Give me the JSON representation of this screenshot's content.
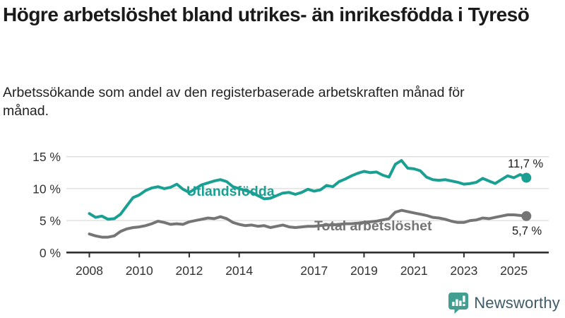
{
  "header": {
    "title": "Högre arbetslöshet bland utrikes- än inrikesfödda i Tyresö",
    "subtitle": "Arbetssökande som andel av den registerbaserade arbetskraften månad för månad."
  },
  "branding": {
    "logo_text": "Newsworthy",
    "logo_icon": "bar-chart-speech-bubble-icon",
    "logo_icon_color": "#419e90",
    "logo_text_color": "#3f5b69"
  },
  "colors": {
    "series_foreign_born": "#1aa092",
    "series_total": "#757575",
    "grid": "#dcdcdc",
    "axis": "#2e2e2e",
    "tick_text": "#333333",
    "value_label_text": "#1a1a1a"
  },
  "chart_data": {
    "type": "line",
    "title": "Högre arbetslöshet bland utrikes- än inrikesfödda i Tyresö",
    "xlabel": "",
    "ylabel": "",
    "grid": "horizontal",
    "x_axis": {
      "ticks": [
        {
          "value": 2008,
          "label": "2008"
        },
        {
          "value": 2010,
          "label": "2010"
        },
        {
          "value": 2012,
          "label": "2012"
        },
        {
          "value": 2014,
          "label": "2014"
        },
        {
          "value": 2017,
          "label": "2017"
        },
        {
          "value": 2019,
          "label": "2019"
        },
        {
          "value": 2021,
          "label": "2021"
        },
        {
          "value": 2023,
          "label": "2023"
        },
        {
          "value": 2025,
          "label": "2025"
        }
      ]
    },
    "y_axis": {
      "range": [
        0,
        16.5
      ],
      "ticks": [
        {
          "value": 0,
          "label": "0 %"
        },
        {
          "value": 5,
          "label": "5 %"
        },
        {
          "value": 10,
          "label": "10 %"
        },
        {
          "value": 15,
          "label": "15 %"
        }
      ]
    },
    "x": [
      2008,
      2008.25,
      2008.5,
      2008.75,
      2009,
      2009.25,
      2009.5,
      2009.75,
      2010,
      2010.25,
      2010.5,
      2010.75,
      2011,
      2011.25,
      2011.5,
      2011.75,
      2012,
      2012.25,
      2012.5,
      2012.75,
      2013,
      2013.25,
      2013.5,
      2013.75,
      2014,
      2014.25,
      2014.5,
      2014.75,
      2015,
      2015.25,
      2015.5,
      2015.75,
      2016,
      2016.25,
      2016.5,
      2016.75,
      2017,
      2017.25,
      2017.5,
      2017.75,
      2018,
      2018.25,
      2018.5,
      2018.75,
      2019,
      2019.25,
      2019.5,
      2019.75,
      2020,
      2020.25,
      2020.5,
      2020.75,
      2021,
      2021.25,
      2021.5,
      2021.75,
      2022,
      2022.25,
      2022.5,
      2022.75,
      2023,
      2023.25,
      2023.5,
      2023.75,
      2024,
      2024.25,
      2024.5,
      2024.75,
      2025,
      2025.25,
      2025.5
    ],
    "series": [
      {
        "name": "Utlandsfödda",
        "color": "#1aa092",
        "end_label": "11,7 %",
        "end_value": 11.7,
        "values": [
          6.1,
          5.5,
          5.7,
          5.2,
          5.3,
          6.0,
          7.3,
          8.6,
          9.0,
          9.7,
          10.1,
          10.3,
          10.0,
          10.2,
          10.7,
          9.9,
          9.4,
          10.0,
          10.6,
          10.9,
          11.2,
          11.4,
          11.1,
          10.3,
          10.0,
          9.7,
          9.4,
          8.9,
          8.4,
          8.5,
          8.9,
          9.3,
          9.4,
          9.1,
          9.4,
          9.9,
          9.6,
          9.8,
          10.5,
          10.3,
          11.1,
          11.5,
          12.0,
          12.4,
          12.7,
          12.5,
          12.6,
          12.1,
          11.8,
          13.8,
          14.4,
          13.2,
          13.1,
          12.8,
          11.8,
          11.4,
          11.3,
          11.4,
          11.2,
          11.0,
          10.7,
          10.8,
          11.0,
          11.6,
          11.2,
          10.8,
          11.4,
          12.0,
          11.7,
          12.2,
          11.7
        ]
      },
      {
        "name": "Total arbetslöshet",
        "color": "#757575",
        "end_label": "5,7 %",
        "end_value": 5.7,
        "values": [
          2.9,
          2.6,
          2.4,
          2.4,
          2.6,
          3.3,
          3.7,
          3.9,
          4.0,
          4.2,
          4.5,
          4.9,
          4.7,
          4.4,
          4.5,
          4.4,
          4.8,
          5.0,
          5.2,
          5.4,
          5.3,
          5.6,
          5.3,
          4.7,
          4.4,
          4.2,
          4.3,
          4.1,
          4.2,
          3.9,
          4.1,
          4.3,
          4.0,
          3.9,
          4.0,
          4.1,
          4.1,
          4.2,
          4.3,
          4.3,
          4.4,
          4.5,
          4.5,
          4.6,
          4.7,
          4.8,
          4.9,
          5.1,
          5.3,
          6.3,
          6.6,
          6.4,
          6.2,
          6.0,
          5.8,
          5.5,
          5.4,
          5.2,
          4.9,
          4.7,
          4.7,
          5.0,
          5.1,
          5.4,
          5.3,
          5.5,
          5.7,
          5.9,
          5.9,
          5.8,
          5.7
        ]
      }
    ]
  }
}
